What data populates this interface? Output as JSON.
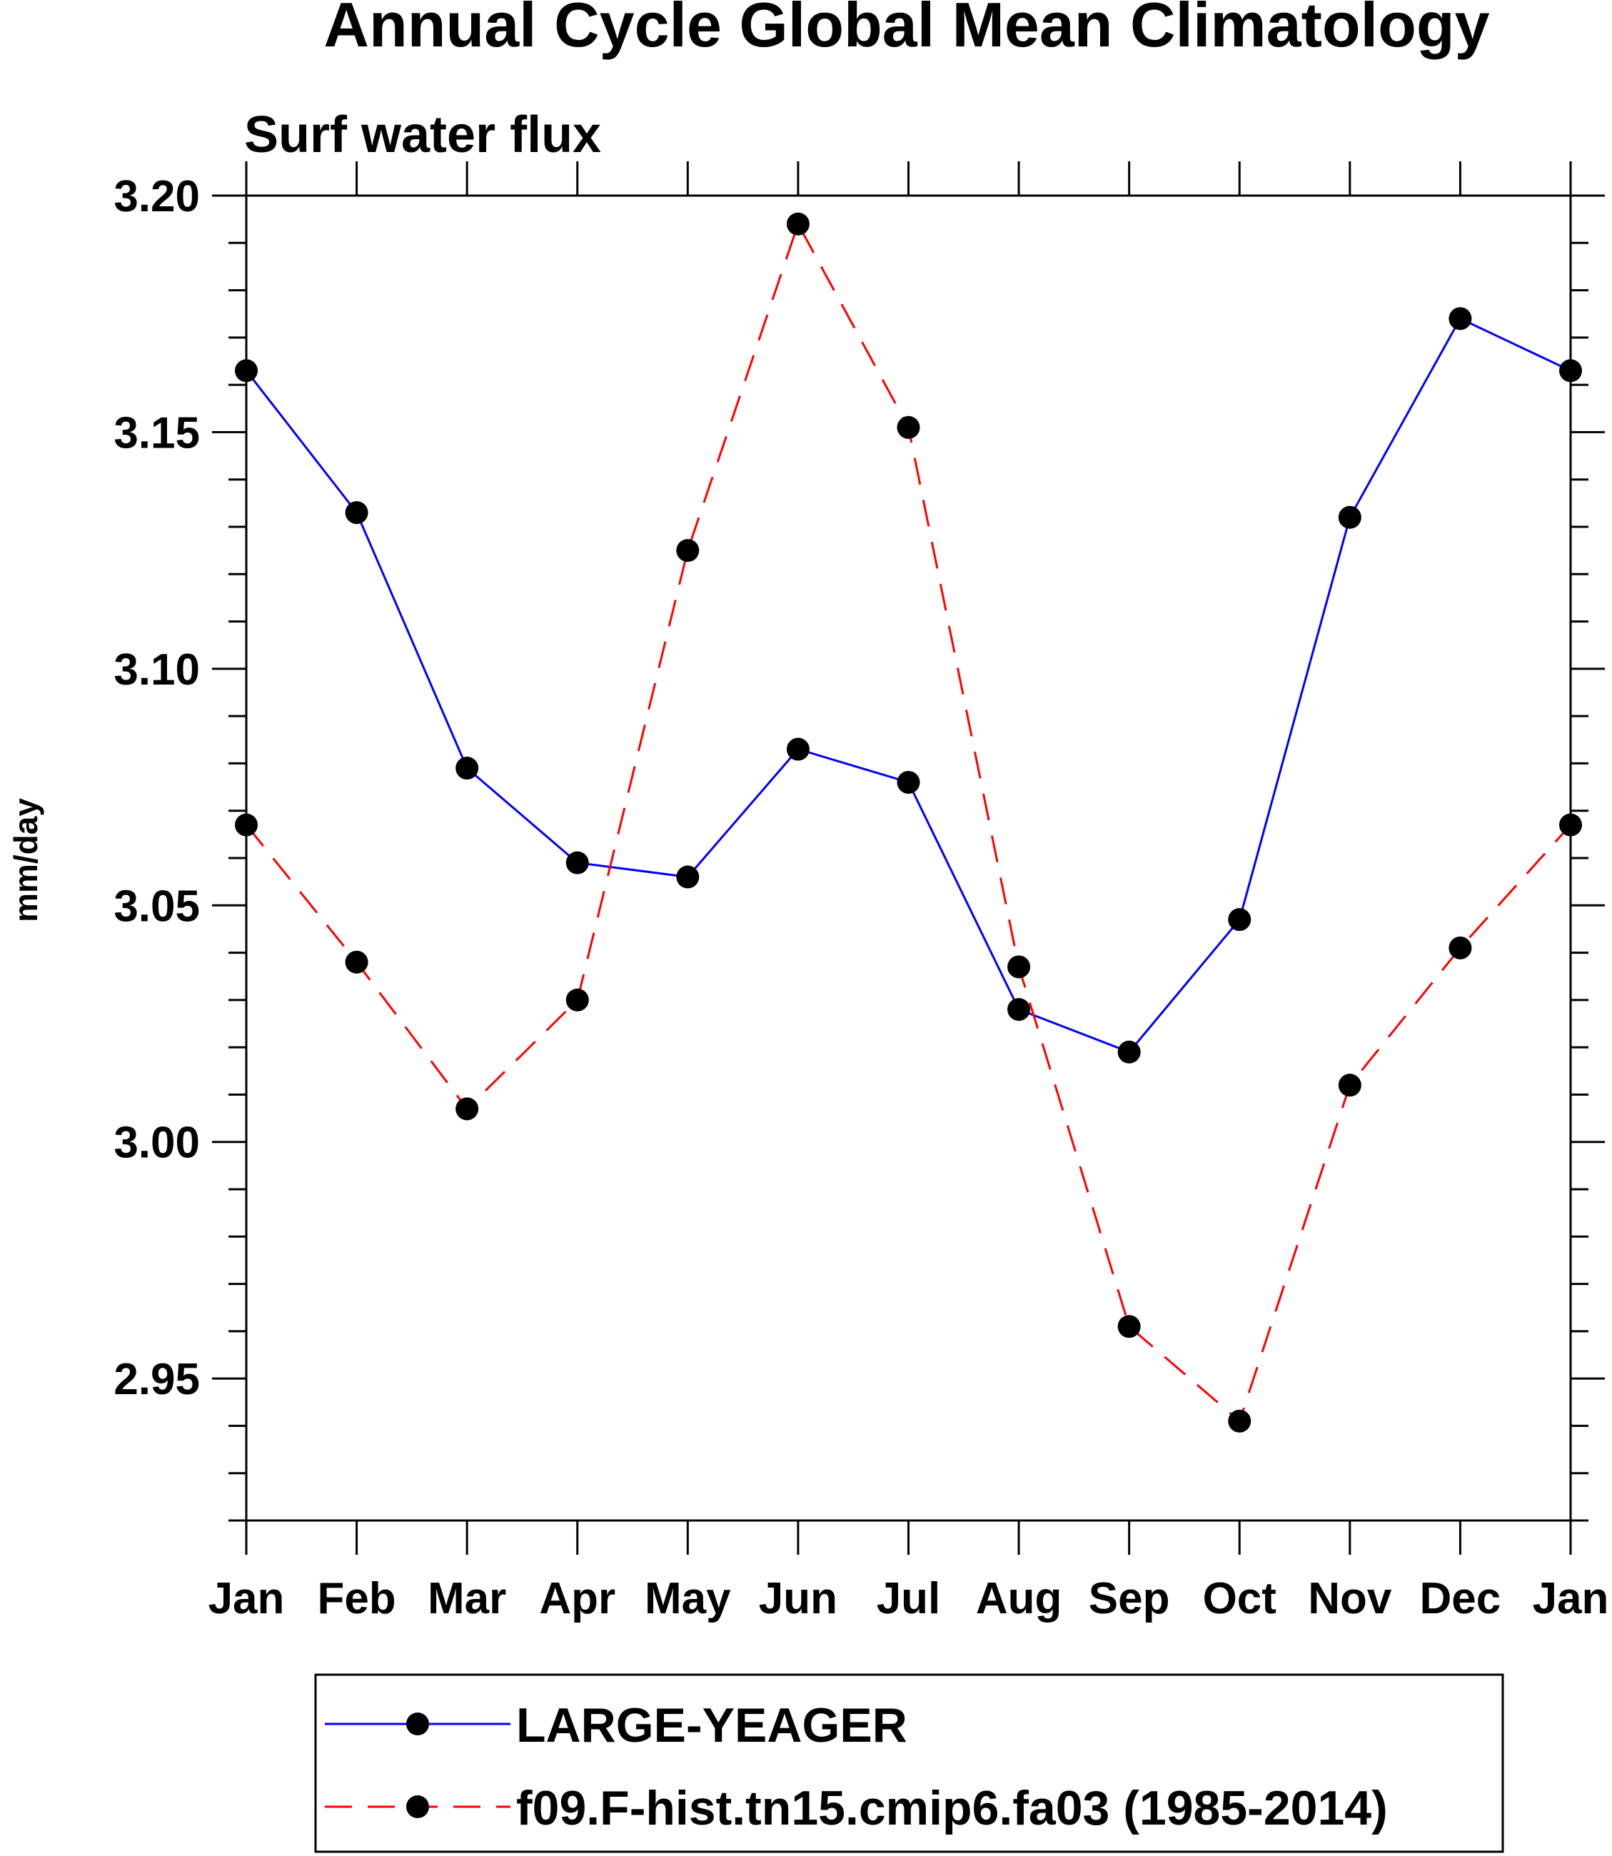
{
  "chart_data": {
    "type": "line",
    "title": "Annual Cycle Global Mean Climatology",
    "subtitle": "Surf water flux",
    "xlabel": "",
    "ylabel": "mm/day",
    "categories": [
      "Jan",
      "Feb",
      "Mar",
      "Apr",
      "May",
      "Jun",
      "Jul",
      "Aug",
      "Sep",
      "Oct",
      "Nov",
      "Dec",
      "Jan"
    ],
    "ylim": [
      2.92,
      3.2
    ],
    "yticks": [
      2.95,
      3.0,
      3.05,
      3.1,
      3.15,
      3.2
    ],
    "ytick_labels": [
      "2.95",
      "3.00",
      "3.05",
      "3.10",
      "3.15",
      "3.20"
    ],
    "grid": false,
    "legend_position": "bottom",
    "series": [
      {
        "name": "LARGE-YEAGER",
        "color": "#0000ff",
        "dash": "solid",
        "values": [
          3.163,
          3.133,
          3.079,
          3.059,
          3.056,
          3.083,
          3.076,
          3.028,
          3.019,
          3.047,
          3.132,
          3.174,
          3.163
        ]
      },
      {
        "name": "f09.F-hist.tn15.cmip6.fa03 (1985-2014)",
        "color": "#ff0000",
        "dash": "dashed",
        "values": [
          3.067,
          3.038,
          3.007,
          3.03,
          3.125,
          3.194,
          3.151,
          3.037,
          2.961,
          2.941,
          3.012,
          3.041,
          3.067
        ]
      }
    ],
    "marker_color": "#000000"
  }
}
